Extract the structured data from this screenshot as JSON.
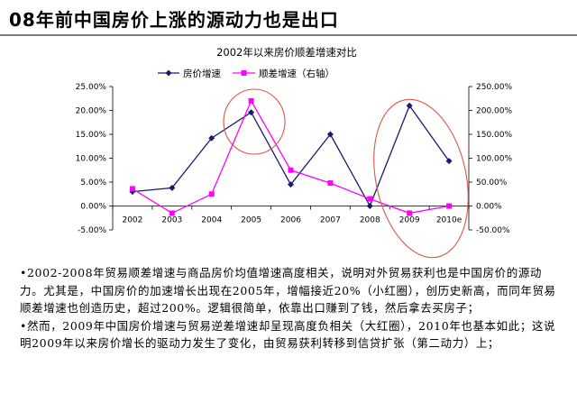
{
  "slide": {
    "title": "08年前中国房价上涨的源动力也是出口"
  },
  "chart_data": {
    "type": "line",
    "title": "2002年以来房价顺差增速对比",
    "categories": [
      "2002",
      "2003",
      "2004",
      "2005",
      "2006",
      "2007",
      "2008",
      "2009",
      "2010e"
    ],
    "series": [
      {
        "name": "房价增速",
        "axis": "left",
        "marker": "diamond",
        "color": "#1a1a6e",
        "values": [
          3.0,
          3.8,
          14.2,
          19.6,
          4.5,
          15.0,
          0.0,
          21.0,
          9.4
        ]
      },
      {
        "name": "顺差增速（右轴）",
        "axis": "right",
        "marker": "square",
        "color": "#ff00ff",
        "values": [
          36,
          -15,
          25,
          220,
          75,
          48,
          15,
          -15,
          0
        ]
      }
    ],
    "left_axis": {
      "min": -5,
      "max": 25,
      "step": 5,
      "tick_labels": [
        "-5.00%",
        "0.00%",
        "5.00%",
        "10.00%",
        "15.00%",
        "20.00%",
        "25.00%"
      ]
    },
    "right_axis": {
      "min": -50,
      "max": 250,
      "step": 50,
      "tick_labels": [
        "-50.00%",
        "0.00%",
        "50.00%",
        "100.00%",
        "150.00%",
        "200.00%",
        "250.00%"
      ]
    },
    "legend_position": "top",
    "grid": false,
    "annotations": [
      {
        "shape": "ellipse",
        "color": "#d9574a",
        "around": "2005"
      },
      {
        "shape": "ellipse",
        "color": "#d9574a",
        "around": "2009-2010e"
      }
    ]
  },
  "bullets": [
    "•2002-2008年贸易顺差增速与商品房价均值增速高度相关，说明对外贸易获利也是中国房价的源动力。尤其是，中国房价的加速增长出现在2005年，增幅接近20%（小红圈），创历史新高，而同年贸易顺差增速也创造历史，超过200%。逻辑很简单，依靠出口赚到了钱，然后拿去买房子；",
    "•然而，2009年中国房价增速与贸易逆差增速却呈现高度负相关（大红圈），2010年也基本如此；这说明2009年以来房价增长的驱动力发生了变化，由贸易获利转移到信贷扩张（第二动力）上；"
  ]
}
